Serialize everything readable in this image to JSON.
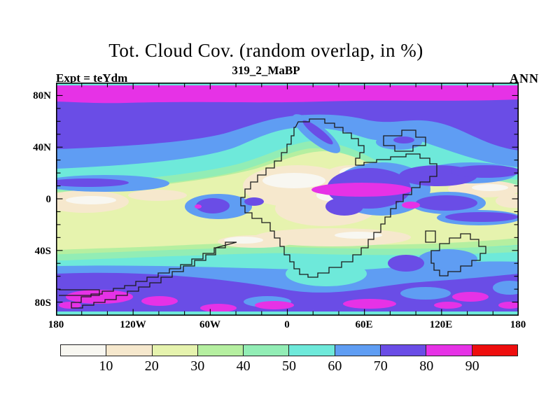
{
  "header": {
    "title": "Tot. Cloud Cov. (random overlap, in %)",
    "subtitle": "319_2_MaBP",
    "expt_label": "Expt = teYdm",
    "season_label": "ANN"
  },
  "axes": {
    "lat_tick_labels": [
      "80N",
      "40N",
      "0",
      "40S",
      "80S"
    ],
    "lon_tick_labels": [
      "180",
      "120W",
      "60W",
      "0",
      "60E",
      "120E",
      "180"
    ]
  },
  "colorbar": {
    "boundary_labels": [
      "10",
      "20",
      "30",
      "40",
      "50",
      "60",
      "70",
      "80",
      "90"
    ],
    "segment_colors": [
      "#f8f7f1",
      "#f6e8cd",
      "#e6f3ae",
      "#b5efa0",
      "#92edb5",
      "#6ee9da",
      "#5f9df3",
      "#6a4de6",
      "#e632e6",
      "#ee0e0e"
    ]
  },
  "chart_data": {
    "type": "heatmap",
    "subtype": "filled-contour-map",
    "title": "Tot. Cloud Cov. (random overlap, in %)",
    "subtitle": "319_2_MaBP",
    "experiment": "teYdm",
    "season": "ANN",
    "units": "%",
    "lon_range": [
      -180,
      180
    ],
    "lat_range": [
      -90,
      90
    ],
    "lon_tick_labels": [
      "180",
      "120W",
      "60W",
      "0",
      "60E",
      "120E",
      "180"
    ],
    "lat_tick_labels": [
      "80N",
      "40N",
      "0",
      "40S",
      "80S"
    ],
    "contour_levels": [
      0,
      10,
      20,
      30,
      40,
      50,
      60,
      70,
      80,
      90,
      100
    ],
    "palette": [
      "#f8f7f1",
      "#f6e8cd",
      "#e6f3ae",
      "#b5efa0",
      "#92edb5",
      "#6ee9da",
      "#5f9df3",
      "#6a4de6",
      "#e632e6",
      "#ee0e0e"
    ],
    "legend_position": "bottom",
    "grid": false,
    "zonal_mean_bands": [
      {
        "lat_from": 88,
        "lat_to": 90,
        "cloud_pct": 55
      },
      {
        "lat_from": 78,
        "lat_to": 88,
        "cloud_pct": 85
      },
      {
        "lat_from": 50,
        "lat_to": 78,
        "cloud_pct": 75
      },
      {
        "lat_from": 36,
        "lat_to": 50,
        "cloud_pct": 65
      },
      {
        "lat_from": 20,
        "lat_to": 36,
        "cloud_pct": 55
      },
      {
        "lat_from": 8,
        "lat_to": 20,
        "cloud_pct": 40
      },
      {
        "lat_from": -8,
        "lat_to": 8,
        "cloud_pct": 20
      },
      {
        "lat_from": -20,
        "lat_to": -8,
        "cloud_pct": 45
      },
      {
        "lat_from": -32,
        "lat_to": -20,
        "cloud_pct": 25
      },
      {
        "lat_from": -48,
        "lat_to": -32,
        "cloud_pct": 55
      },
      {
        "lat_from": -58,
        "lat_to": -48,
        "cloud_pct": 65
      },
      {
        "lat_from": -78,
        "lat_to": -58,
        "cloud_pct": 78
      },
      {
        "lat_from": -88,
        "lat_to": -78,
        "cloud_pct": 70
      },
      {
        "lat_from": -90,
        "lat_to": -88,
        "cloud_pct": 55
      }
    ],
    "notable_features": [
      {
        "region": "Arctic band ~78N-88N",
        "cloud_pct": "80-90"
      },
      {
        "region": "Equatorial convective blob near 50W, 0-8S",
        "cloud_pct": "70-85"
      },
      {
        "region": "Large equatorial high-cloud region 20E-120E with magenta core",
        "cloud_pct": "70-90"
      },
      {
        "region": "Clear Pangea continental interiors near 25N and 25S",
        "cloud_pct": "0-20"
      },
      {
        "region": "Southern storm track 55S-75S with 80-90% patches",
        "cloud_pct": "70-90"
      },
      {
        "region": "Thin cyan strips at both polar map edges",
        "cloud_pct": "50-60"
      },
      {
        "region": "Stepped coastline outlines of 319.2 Ma (Pangea) continents",
        "cloud_pct": ""
      }
    ]
  }
}
